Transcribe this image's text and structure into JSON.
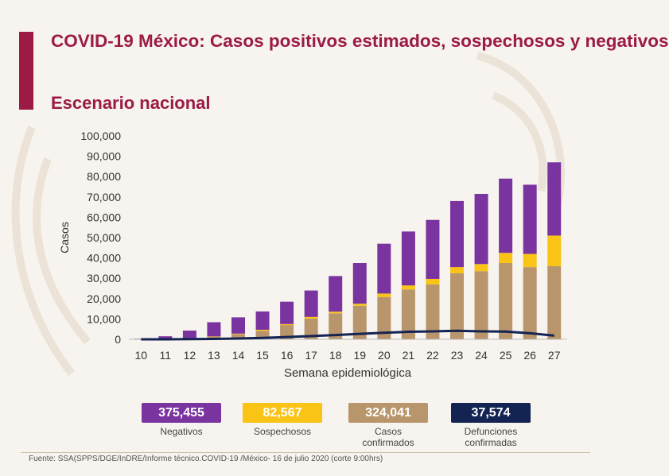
{
  "header": {
    "title": "COVID-19 México: Casos positivos estimados, sospechosos y negativos",
    "subtitle": "Escenario nacional"
  },
  "colors": {
    "brand": "#9b1b46",
    "negativos": "#7a34a0",
    "sospechosos": "#f9c415",
    "confirmados": "#b8956a",
    "defunciones": "#132453"
  },
  "chart_data": {
    "type": "bar",
    "stacked": true,
    "xlabel": "Semana epidemiológica",
    "ylabel": "Casos",
    "ylim": [
      0,
      100000
    ],
    "yticks": [
      "0",
      "10,000",
      "20,000",
      "30,000",
      "40,000",
      "50,000",
      "60,000",
      "70,000",
      "80,000",
      "90,000",
      "100,000"
    ],
    "ytick_values": [
      0,
      10000,
      20000,
      30000,
      40000,
      50000,
      60000,
      70000,
      80000,
      90000,
      100000
    ],
    "categories": [
      "10",
      "11",
      "12",
      "13",
      "14",
      "15",
      "16",
      "17",
      "18",
      "19",
      "20",
      "21",
      "22",
      "23",
      "24",
      "25",
      "26",
      "27"
    ],
    "series": [
      {
        "name": "Casos confirmados",
        "values": [
          0,
          200,
          500,
          1200,
          2500,
          4200,
          7000,
          10200,
          12800,
          16500,
          20800,
          24500,
          27000,
          32500,
          33500,
          37500,
          35500,
          36000
        ]
      },
      {
        "name": "Sospechosos",
        "values": [
          0,
          0,
          0,
          200,
          300,
          500,
          500,
          800,
          800,
          1000,
          1700,
          2000,
          2700,
          3000,
          3500,
          5000,
          6500,
          15000
        ]
      },
      {
        "name": "Negativos",
        "values": [
          300,
          1300,
          3800,
          7000,
          8000,
          9000,
          11000,
          13000,
          17500,
          20000,
          24500,
          26500,
          29000,
          32500,
          34500,
          36500,
          34000,
          36000
        ]
      }
    ],
    "line": {
      "name": "Defunciones confirmadas",
      "values": [
        0,
        0,
        100,
        200,
        400,
        700,
        1100,
        1600,
        2100,
        2700,
        3200,
        3700,
        3900,
        4200,
        3900,
        3800,
        3000,
        1800
      ]
    }
  },
  "legend": [
    {
      "value": "375,455",
      "label": "Negativos"
    },
    {
      "value": "82,567",
      "label": "Sospechosos"
    },
    {
      "value": "324,041",
      "label": "Casos confirmados"
    },
    {
      "value": "37,574",
      "label": "Defunciones confirmadas"
    }
  ],
  "footer": {
    "source": "Fuente: SSA(SPPS/DGE/InDRE/Informe técnico.COVID-19 /México- 16 de julio 2020 (corte 9:00hrs)"
  }
}
